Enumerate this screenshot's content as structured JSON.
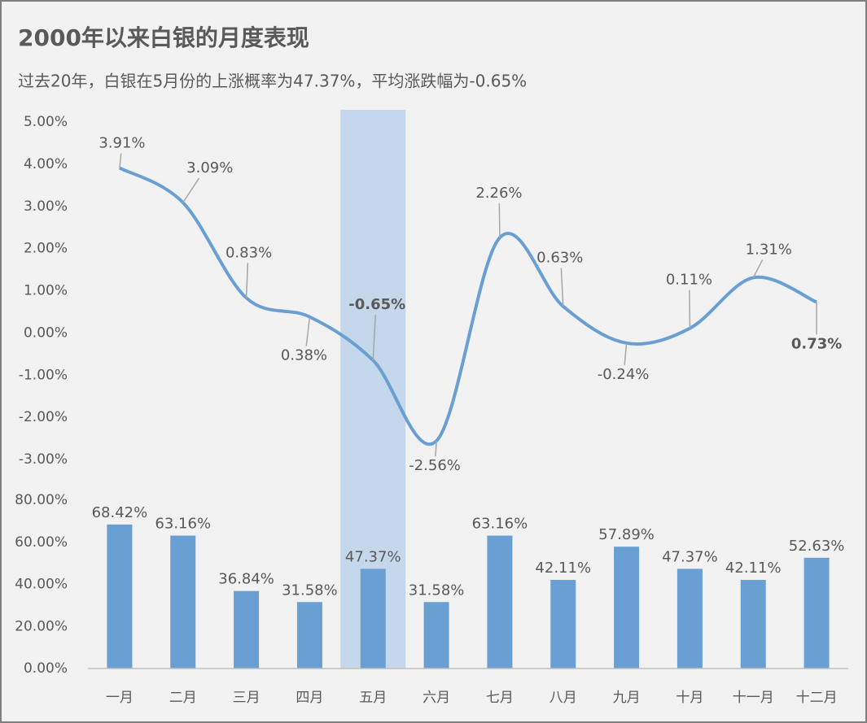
{
  "chart_data": [
    {
      "type": "line",
      "title": "2000年以来白银的月度表现",
      "subtitle": "过去20年，白银在5月份的上涨概率为47.37%，平均涨跌幅为-0.65%",
      "values": [
        3.91,
        3.09,
        0.83,
        0.38,
        -0.65,
        -2.56,
        2.26,
        0.63,
        -0.24,
        0.11,
        1.31,
        0.73
      ],
      "value_labels": [
        "3.91%",
        "3.09%",
        "0.83%",
        "0.38%",
        "-0.65%",
        "-2.56%",
        "2.26%",
        "0.63%",
        "-0.24%",
        "0.11%",
        "1.31%",
        "0.73%"
      ],
      "color": "#6a9fd4",
      "ylim": [
        -3,
        5
      ],
      "yticks": [
        {
          "value": 5,
          "label": "5.00%"
        },
        {
          "value": 4,
          "label": "4.00%"
        },
        {
          "value": 3,
          "label": "3.00%"
        },
        {
          "value": 2,
          "label": "2.00%"
        },
        {
          "value": 1,
          "label": "1.00%"
        },
        {
          "value": 0,
          "label": "0.00%"
        },
        {
          "value": -1,
          "label": "-1.00%"
        },
        {
          "value": -2,
          "label": "-2.00%"
        },
        {
          "value": -3,
          "label": "-3.00%"
        }
      ],
      "grid": false
    },
    {
      "type": "bar",
      "categories": [
        "一月",
        "二月",
        "三月",
        "四月",
        "五月",
        "六月",
        "七月",
        "八月",
        "九月",
        "十月",
        "十一月",
        "十二月"
      ],
      "values": [
        68.42,
        63.16,
        36.84,
        31.58,
        47.37,
        31.58,
        63.16,
        42.11,
        57.89,
        47.37,
        42.11,
        52.63
      ],
      "value_labels": [
        "68.42%",
        "63.16%",
        "36.84%",
        "31.58%",
        "47.37%",
        "31.58%",
        "63.16%",
        "42.11%",
        "57.89%",
        "47.37%",
        "42.11%",
        "52.63%"
      ],
      "color": "#6a9fd4",
      "highlight": "五月",
      "highlight_color": "#3aaa8a",
      "ylim": [
        0,
        80
      ],
      "yticks": [
        {
          "value": 80,
          "label": "80.00%"
        },
        {
          "value": 60,
          "label": "60.00%"
        },
        {
          "value": 40,
          "label": "40.00%"
        },
        {
          "value": 20,
          "label": "20.00%"
        },
        {
          "value": 0,
          "label": "0.00%"
        }
      ],
      "grid": false
    }
  ]
}
